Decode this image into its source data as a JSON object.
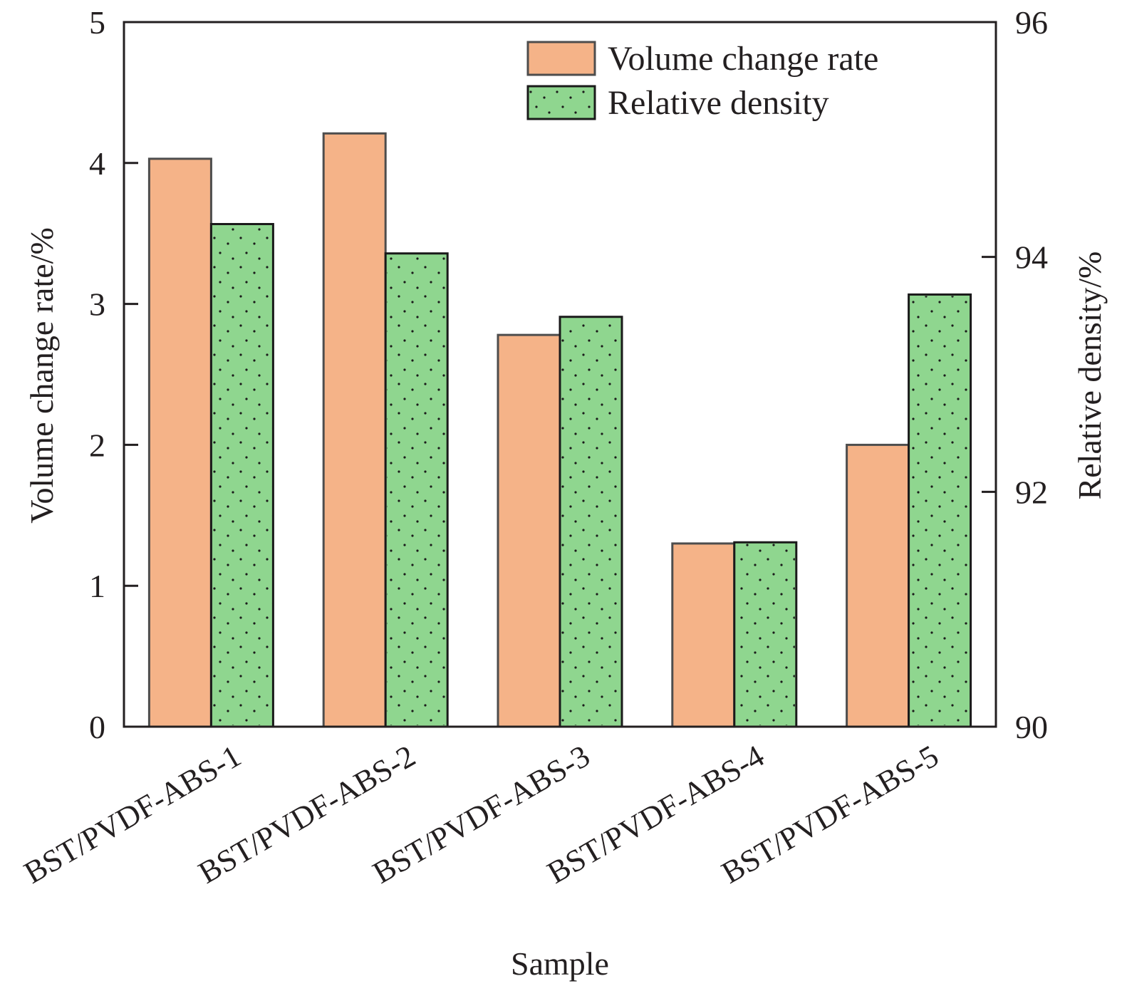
{
  "chart_data": {
    "type": "bar",
    "title": "",
    "xlabel": "Sample",
    "ylabel": "Volume change rate/%",
    "y2label": "Relative density/%",
    "categories": [
      "BST/PVDF-ABS-1",
      "BST/PVDF-ABS-2",
      "BST/PVDF-ABS-3",
      "BST/PVDF-ABS-4",
      "BST/PVDF-ABS-5"
    ],
    "ylim": [
      0,
      5
    ],
    "y2lim": [
      90,
      96
    ],
    "yticks": [
      "0",
      "1",
      "2",
      "3",
      "4",
      "5"
    ],
    "y2ticks": [
      "90",
      "92",
      "94",
      "96"
    ],
    "grid": false,
    "legend_position": "top-right",
    "series": [
      {
        "name": "Volume change rate",
        "axis": "left",
        "color": "#f5b388",
        "values": [
          4.03,
          4.21,
          2.78,
          1.3,
          2.0
        ]
      },
      {
        "name": "Relative density",
        "axis": "right",
        "color": "#8fd68f",
        "values": [
          94.28,
          94.03,
          93.49,
          91.57,
          93.68
        ]
      }
    ]
  }
}
